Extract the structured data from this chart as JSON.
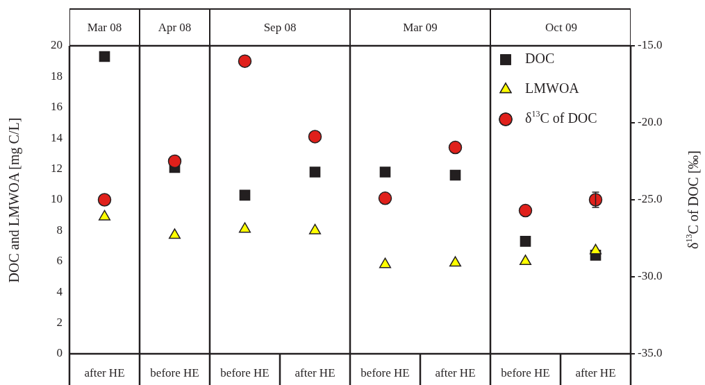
{
  "chart_data": {
    "type": "scatter",
    "ylabel": "DOC and LMWOA [mg C/L]",
    "y2label": "δ$^{13}$C of DOC [‰]",
    "categories": [
      "after HE",
      "before HE",
      "before HE",
      "after HE",
      "before HE",
      "after HE",
      "before HE",
      "after HE"
    ],
    "annotations": [
      "Mar 08",
      "Apr 08",
      "Sep 08",
      "Mar 09",
      "Oct 09"
    ],
    "series": [
      {
        "name": "DOC",
        "color": "#231f20",
        "marker": "square",
        "values": [
          19.3,
          12.1,
          10.3,
          11.8,
          11.8,
          11.6,
          7.3,
          6.4
        ]
      },
      {
        "name": "LMWOA",
        "color": "#ffff00",
        "marker": "triangle",
        "values": [
          8.9,
          7.7,
          8.1,
          8.0,
          5.8,
          5.9,
          6.0,
          6.7
        ]
      },
      {
        "name": "δ$^{13}$C of DOC",
        "color": "#e0201b",
        "marker": "circle",
        "axis": "y2",
        "values": [
          -25.0,
          -22.5,
          -16.0,
          -20.9,
          -24.9,
          -21.6,
          -25.7,
          -25.0
        ],
        "errors": [
          null,
          null,
          null,
          null,
          null,
          null,
          null,
          0.5
        ]
      }
    ],
    "ylim": [
      0,
      20
    ],
    "yticks": [
      0,
      2,
      4,
      6,
      8,
      10,
      12,
      14,
      16,
      18,
      20
    ],
    "y2lim": [
      -35,
      -15
    ],
    "y2ticks": [
      {
        "value": -35,
        "label": "-35.0"
      },
      {
        "value": -30,
        "label": "-30.0"
      },
      {
        "value": -25,
        "label": "-25.0"
      },
      {
        "value": -20,
        "label": "-20.0"
      },
      {
        "value": -15,
        "label": "-15.0"
      }
    ],
    "grid": false,
    "legend": "top right"
  }
}
